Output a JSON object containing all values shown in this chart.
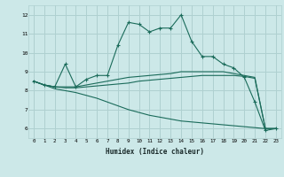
{
  "x": [
    0,
    1,
    2,
    3,
    4,
    5,
    6,
    7,
    8,
    9,
    10,
    11,
    12,
    13,
    14,
    15,
    16,
    17,
    18,
    19,
    20,
    21,
    22,
    23
  ],
  "line1": [
    8.5,
    8.3,
    8.2,
    9.4,
    8.2,
    8.6,
    8.8,
    8.8,
    10.4,
    11.6,
    11.5,
    11.1,
    11.3,
    11.3,
    12.0,
    10.6,
    9.8,
    9.8,
    9.4,
    9.2,
    8.7,
    7.4,
    5.9,
    6.0
  ],
  "line2": [
    8.5,
    8.3,
    8.2,
    8.2,
    8.2,
    8.3,
    8.4,
    8.5,
    8.6,
    8.7,
    8.75,
    8.8,
    8.85,
    8.9,
    9.0,
    9.0,
    9.0,
    9.0,
    9.0,
    8.9,
    8.8,
    8.7,
    6.0,
    6.0
  ],
  "line3": [
    8.5,
    8.3,
    8.2,
    8.15,
    8.15,
    8.2,
    8.25,
    8.3,
    8.35,
    8.4,
    8.5,
    8.55,
    8.6,
    8.65,
    8.7,
    8.75,
    8.8,
    8.8,
    8.8,
    8.8,
    8.75,
    8.65,
    6.0,
    6.0
  ],
  "line4": [
    8.5,
    8.3,
    8.1,
    8.0,
    7.9,
    7.75,
    7.6,
    7.4,
    7.2,
    7.0,
    6.85,
    6.7,
    6.6,
    6.5,
    6.4,
    6.35,
    6.3,
    6.25,
    6.2,
    6.15,
    6.1,
    6.05,
    6.0,
    6.0
  ],
  "color": "#1a6b5a",
  "bg_color": "#cce8e8",
  "grid_color": "#afd0d0",
  "xlabel": "Humidex (Indice chaleur)",
  "ylim": [
    5.5,
    12.5
  ],
  "xlim": [
    -0.5,
    23.5
  ],
  "yticks": [
    6,
    7,
    8,
    9,
    10,
    11,
    12
  ],
  "xticks": [
    0,
    1,
    2,
    3,
    4,
    5,
    6,
    7,
    8,
    9,
    10,
    11,
    12,
    13,
    14,
    15,
    16,
    17,
    18,
    19,
    20,
    21,
    22,
    23
  ]
}
